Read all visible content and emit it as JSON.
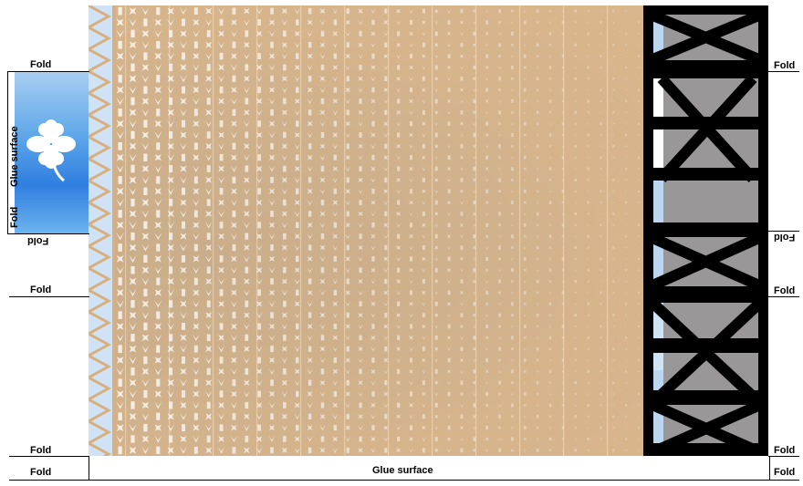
{
  "labels": {
    "fold": "Fold",
    "glue_surface": "Glue surface"
  },
  "colors": {
    "cardboard": "#d6b083",
    "sky_blue": "#3d8ae3",
    "truss_black": "#000000",
    "truss_gray": "#9a9798"
  },
  "icons": {
    "flap_symbol": "four-leaf-clover-icon"
  }
}
